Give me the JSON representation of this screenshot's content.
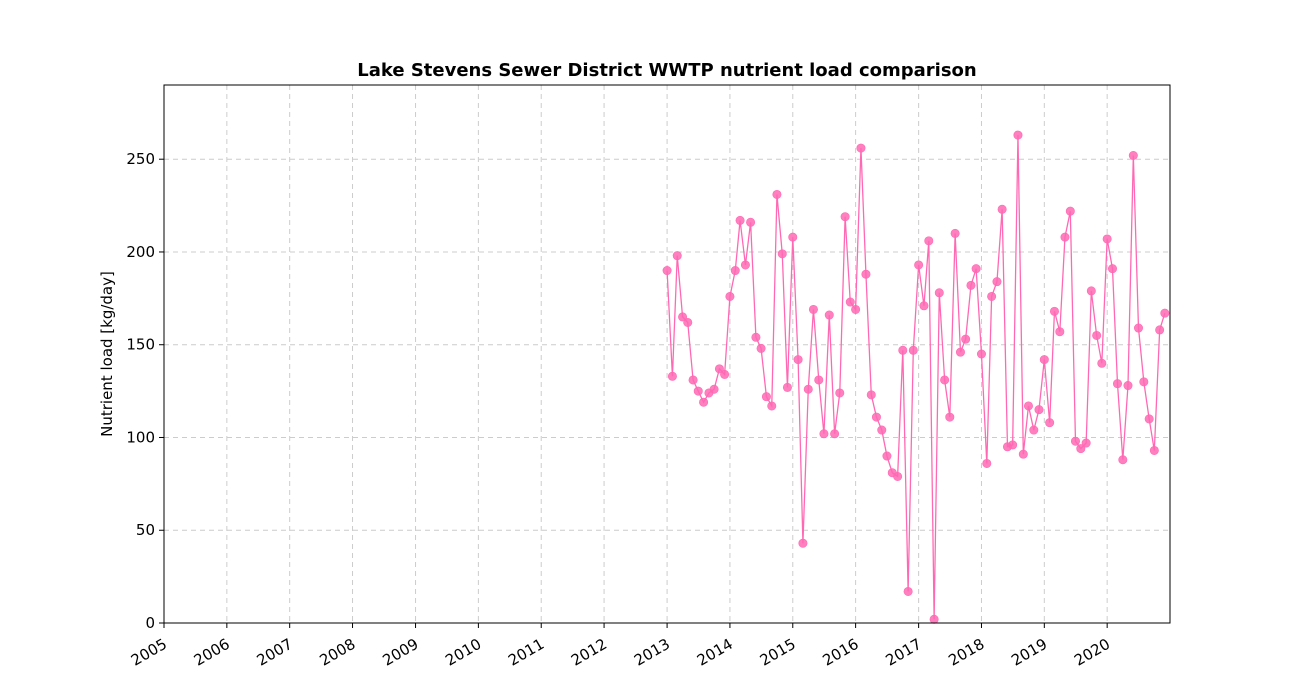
{
  "chart_data": {
    "type": "line",
    "title": "Lake Stevens Sewer District WWTP nutrient load comparison",
    "xlabel": "",
    "ylabel": "Nutrient load [kg/day]",
    "xlim": [
      "2005-01-01",
      "2020-12-31"
    ],
    "ylim": [
      0,
      290
    ],
    "grid": true,
    "legend": "none",
    "colors": {
      "series": "#ff69b4",
      "grid": "#cccccc",
      "axes": "#000000"
    },
    "x_ticks": [
      "2005",
      "2006",
      "2007",
      "2008",
      "2009",
      "2010",
      "2011",
      "2012",
      "2013",
      "2014",
      "2015",
      "2016",
      "2017",
      "2018",
      "2019",
      "2020"
    ],
    "y_ticks": [
      "0",
      "50",
      "100",
      "150",
      "200",
      "250"
    ],
    "series": [
      {
        "x": [
          "2013-01",
          "2013-02",
          "2013-03",
          "2013-04",
          "2013-05",
          "2013-06",
          "2013-07",
          "2013-08",
          "2013-09",
          "2013-10",
          "2013-11",
          "2013-12",
          "2014-01",
          "2014-02",
          "2014-03",
          "2014-04",
          "2014-05",
          "2014-06",
          "2014-07",
          "2014-08",
          "2014-09",
          "2014-10",
          "2014-11",
          "2014-12",
          "2015-01",
          "2015-02",
          "2015-03",
          "2015-04",
          "2015-05",
          "2015-06",
          "2015-07",
          "2015-08",
          "2015-09",
          "2015-10",
          "2015-11",
          "2015-12",
          "2016-01",
          "2016-02",
          "2016-03",
          "2016-04",
          "2016-05",
          "2016-06",
          "2016-07",
          "2016-08",
          "2016-09",
          "2016-10",
          "2016-11",
          "2016-12",
          "2017-01",
          "2017-02",
          "2017-03",
          "2017-04",
          "2017-05",
          "2017-06",
          "2017-07",
          "2017-08",
          "2017-09",
          "2017-10",
          "2017-11",
          "2017-12",
          "2018-01",
          "2018-02",
          "2018-03",
          "2018-04",
          "2018-05",
          "2018-06",
          "2018-07",
          "2018-08",
          "2018-09",
          "2018-10",
          "2018-11",
          "2018-12",
          "2019-01",
          "2019-02",
          "2019-03",
          "2019-04",
          "2019-05",
          "2019-06",
          "2019-07",
          "2019-08",
          "2019-09",
          "2019-10",
          "2019-11",
          "2019-12",
          "2020-01",
          "2020-02",
          "2020-03",
          "2020-04",
          "2020-05",
          "2020-06",
          "2020-07",
          "2020-08",
          "2020-09",
          "2020-10",
          "2020-11",
          "2020-12"
        ],
        "y": [
          190,
          133,
          198,
          165,
          162,
          131,
          125,
          119,
          124,
          126,
          137,
          134,
          176,
          190,
          217,
          193,
          216,
          154,
          148,
          122,
          117,
          231,
          199,
          127,
          208,
          142,
          43,
          126,
          169,
          131,
          102,
          166,
          102,
          124,
          219,
          173,
          169,
          256,
          188,
          123,
          111,
          104,
          90,
          81,
          79,
          147,
          17,
          147,
          193,
          171,
          206,
          2,
          178,
          131,
          111,
          210,
          146,
          153,
          182,
          191,
          145,
          86,
          176,
          184,
          223,
          95,
          96,
          263,
          91,
          117,
          104,
          115,
          142,
          108,
          168,
          157,
          208,
          222,
          98,
          94,
          97,
          179,
          155,
          140,
          207,
          191,
          129,
          88,
          128,
          252,
          159,
          130,
          110,
          93,
          158,
          167
        ]
      }
    ]
  }
}
